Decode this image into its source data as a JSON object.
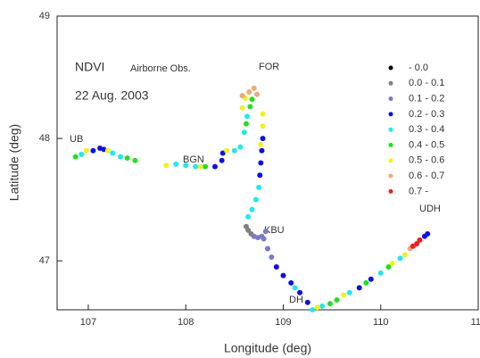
{
  "chart_data": {
    "type": "scatter",
    "x_label": "Longitude (deg)",
    "y_label": "Latitude (deg)",
    "annotations": [
      "NDVI",
      "Airborne Obs.",
      "22 Aug. 2003",
      "FOR",
      "UB",
      "BGN",
      "KBU",
      "UDH",
      "DH"
    ],
    "xlim": [
      106.68,
      111
    ],
    "ylim": [
      46.6,
      49
    ],
    "xticks": [
      107,
      108,
      109,
      110,
      111
    ],
    "yticks": [
      47,
      48,
      49
    ],
    "legend": "upper right",
    "series": [
      {
        "name": "- 0.0",
        "color": "#000000",
        "x": [],
        "y": []
      },
      {
        "name": "0.0 - 0.1",
        "color": "#808080",
        "x": [
          108.62,
          108.64,
          108.67
        ],
        "y": [
          47.28,
          47.25,
          47.22
        ]
      },
      {
        "name": "0.1 - 0.2",
        "color": "#7a7ac8",
        "x": [
          108.7,
          108.74,
          108.78,
          108.82,
          108.8,
          108.84,
          108.88
        ],
        "y": [
          47.2,
          47.19,
          47.2,
          47.24,
          47.18,
          47.1,
          47.03
        ]
      },
      {
        "name": "0.2 - 0.3",
        "color": "#1010e0",
        "x": [
          107.05,
          107.12,
          107.16,
          108.3,
          108.37,
          108.38,
          108.79,
          108.78,
          108.77,
          108.76,
          108.93,
          109.0,
          109.08,
          109.17,
          109.25,
          109.78,
          109.9,
          110.45,
          110.48
        ],
        "y": [
          47.9,
          47.92,
          47.91,
          47.77,
          47.82,
          47.88,
          48.0,
          47.9,
          47.8,
          47.7,
          46.95,
          46.88,
          46.82,
          46.74,
          46.66,
          46.78,
          46.85,
          47.2,
          47.22
        ]
      },
      {
        "name": "0.3 - 0.4",
        "color": "#20e8f0",
        "x": [
          106.93,
          107.25,
          107.33,
          107.9,
          108.0,
          108.1,
          108.5,
          108.56,
          108.6,
          108.63,
          108.75,
          108.72,
          108.68,
          108.64,
          109.12,
          109.3,
          109.4,
          109.68,
          110.0,
          110.2
        ],
        "y": [
          47.87,
          47.88,
          47.85,
          47.79,
          47.78,
          47.77,
          47.9,
          47.93,
          48.05,
          48.18,
          47.6,
          47.5,
          47.42,
          47.36,
          46.78,
          46.6,
          46.63,
          46.74,
          46.9,
          47.02
        ]
      },
      {
        "name": "0.4 - 0.5",
        "color": "#20e020",
        "x": [
          106.87,
          107.4,
          107.48,
          108.2,
          108.62,
          108.66,
          108.68,
          109.48,
          109.55,
          109.85,
          110.08
        ],
        "y": [
          47.85,
          47.84,
          47.82,
          47.77,
          48.12,
          48.26,
          48.32,
          46.65,
          46.68,
          46.82,
          46.95
        ]
      },
      {
        "name": "0.5 - 0.6",
        "color": "#f0f020",
        "x": [
          106.98,
          107.2,
          107.8,
          108.15,
          108.42,
          108.58,
          108.61,
          108.79,
          108.79,
          108.77,
          109.35,
          109.62,
          110.12,
          110.25
        ],
        "y": [
          47.9,
          47.9,
          47.78,
          47.77,
          47.9,
          48.25,
          48.33,
          48.2,
          48.1,
          47.95,
          46.62,
          46.72,
          46.98,
          47.05
        ]
      },
      {
        "name": "0.6 - 0.7",
        "color": "#f0a878",
        "x": [
          108.58,
          108.65,
          108.7,
          108.73,
          110.3
        ],
        "y": [
          48.35,
          48.38,
          48.41,
          48.36,
          47.1
        ]
      },
      {
        "name": "0.7 -",
        "color": "#f02020",
        "x": [
          110.33,
          110.37,
          110.4
        ],
        "y": [
          47.12,
          47.14,
          47.17
        ]
      }
    ]
  }
}
